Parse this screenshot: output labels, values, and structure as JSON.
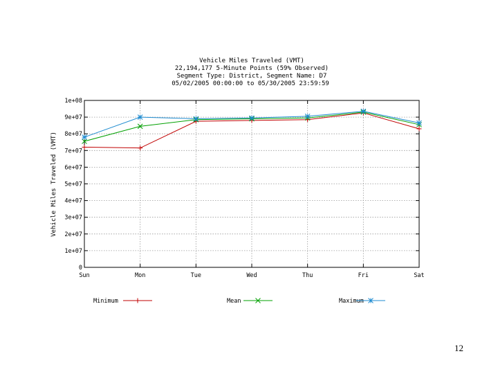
{
  "chart_data": {
    "type": "line",
    "title": [
      "Vehicle Miles Traveled (VMT)",
      "22,194,177 5-Minute Points (59% Observed)",
      "Segment Type: District, Segment Name: D7",
      "05/02/2005 00:00:00 to 05/30/2005 23:59:59"
    ],
    "xlabel": "",
    "ylabel": "Vehicle Miles Traveled (VMT)",
    "categories": [
      "Sun",
      "Mon",
      "Tue",
      "Wed",
      "Thu",
      "Fri",
      "Sat"
    ],
    "ylim": [
      0,
      100000000
    ],
    "yticks": [
      0,
      10000000,
      20000000,
      30000000,
      40000000,
      50000000,
      60000000,
      70000000,
      80000000,
      90000000,
      100000000
    ],
    "ytick_labels": [
      "0",
      "1e+07",
      "2e+07",
      "3e+07",
      "4e+07",
      "5e+07",
      "6e+07",
      "7e+07",
      "8e+07",
      "9e+07",
      "1e+08"
    ],
    "grid": true,
    "legend_position": "bottom",
    "series": [
      {
        "name": "Minimum",
        "color": "#c00000",
        "marker": "plus",
        "values": [
          72000000,
          71500000,
          87500000,
          88000000,
          88500000,
          92500000,
          83000000
        ]
      },
      {
        "name": "Mean",
        "color": "#00a000",
        "marker": "cross",
        "values": [
          75500000,
          84500000,
          88500000,
          89000000,
          89500000,
          93000000,
          85500000
        ]
      },
      {
        "name": "Maximum",
        "color": "#1e8bd0",
        "marker": "star",
        "values": [
          78000000,
          90000000,
          89000000,
          89500000,
          90500000,
          93500000,
          86500000
        ]
      }
    ]
  },
  "page": {
    "number": "12"
  }
}
